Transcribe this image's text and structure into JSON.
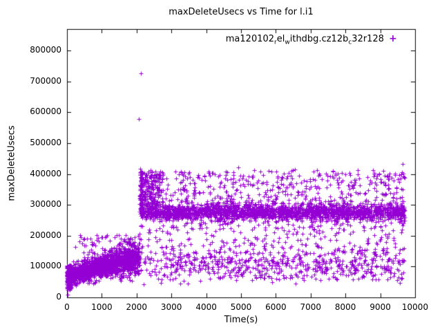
{
  "title": "maxDeleteUsecs vs Time for l.i1",
  "legend": {
    "marker_glyph": "+",
    "parts": [
      {
        "text": "ma120102",
        "sub": false
      },
      {
        "text": "r",
        "sub": true
      },
      {
        "text": "el",
        "sub": false
      },
      {
        "text": "w",
        "sub": true
      },
      {
        "text": "ithdbg.cz12b",
        "sub": false
      },
      {
        "text": "c",
        "sub": true
      },
      {
        "text": "32r128",
        "sub": false
      }
    ]
  },
  "axes": {
    "xlabel": "Time(s)",
    "ylabel": "maxDeleteUsecs",
    "xticks": [
      0,
      1000,
      2000,
      3000,
      4000,
      5000,
      6000,
      7000,
      8000,
      9000,
      10000
    ],
    "yticks": [
      0,
      100000,
      200000,
      300000,
      400000,
      500000,
      600000,
      700000,
      800000
    ]
  },
  "chart_data": {
    "type": "scatter",
    "title": "maxDeleteUsecs vs Time for l.i1",
    "xlabel": "Time(s)",
    "ylabel": "maxDeleteUsecs",
    "xlim": [
      0,
      10000
    ],
    "ylim": [
      0,
      870000
    ],
    "grid": false,
    "legend_position": "top-right-inside",
    "marker": "plus",
    "color": "#9400d3",
    "seed": 42,
    "description": "Dense purple scatter: ramp from ~60000 to ~140000 usecs over t=0..2100s, then a step to a dense band ~255000-300000 usecs with wide scatter from ~50000 up to ~420000 for t=2100..9700s; isolated spikes to ~726000 and ~578000 usecs at t~2100s.",
    "clusters": [
      {
        "type": "trend",
        "x0": 0,
        "x1": 2080,
        "count": 1500,
        "y0": 62000,
        "y1": 130000,
        "exp": 0.75,
        "sigma0": 13000,
        "sigma1": 26000,
        "ymin": 18000,
        "ymax": 210000
      },
      {
        "type": "uniform",
        "x0": 0,
        "x1": 130,
        "count": 150,
        "ylo": 25000,
        "yhi": 105000
      },
      {
        "type": "uniform",
        "x0": 350,
        "x1": 2080,
        "count": 70,
        "ylo": 140000,
        "yhi": 203000
      },
      {
        "type": "gauss",
        "x0": 2100,
        "x1": 9700,
        "count": 2000,
        "center": 277000,
        "sigma": 13000,
        "ymin": 240000,
        "ymax": 322000
      },
      {
        "type": "uniform",
        "x0": 2100,
        "x1": 9700,
        "count": 480,
        "ylo": 300000,
        "yhi": 412000
      },
      {
        "type": "uniform",
        "x0": 2100,
        "x1": 9700,
        "count": 520,
        "ylo": 55000,
        "yhi": 262000
      },
      {
        "type": "gauss",
        "x0": 2100,
        "x1": 9700,
        "count": 380,
        "center": 105000,
        "sigma": 28000,
        "ymin": 42000,
        "ymax": 180000
      },
      {
        "type": "uniform",
        "x0": 2090,
        "x1": 2700,
        "count": 150,
        "ylo": 300000,
        "yhi": 408000
      },
      {
        "type": "uniform",
        "x0": 2090,
        "x1": 2170,
        "count": 60,
        "ylo": 230000,
        "yhi": 412000
      }
    ],
    "outliers": [
      [
        15,
        9000
      ],
      [
        30,
        32000
      ],
      [
        240,
        163000
      ],
      [
        2065,
        578000
      ],
      [
        2115,
        726000
      ],
      [
        2110,
        417000
      ],
      [
        2400,
        412000
      ],
      [
        4930,
        421000
      ],
      [
        6550,
        415000
      ],
      [
        9650,
        432000
      ]
    ]
  }
}
